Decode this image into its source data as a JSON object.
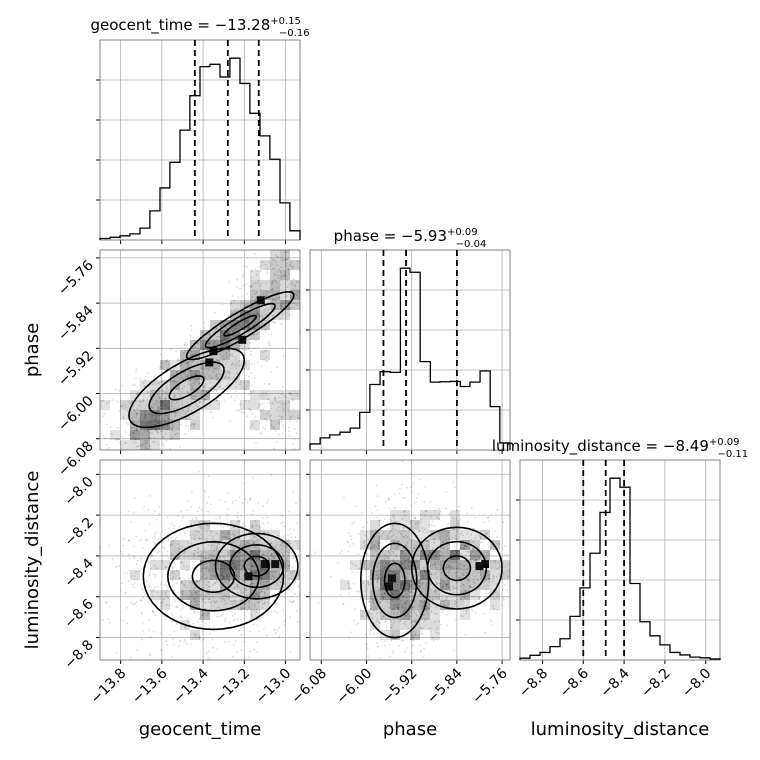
{
  "chart_data": {
    "type": "corner",
    "parameters": [
      "geocent_time",
      "phase",
      "luminosity_distance"
    ],
    "axes": {
      "geocent_time": {
        "label": "geocent_time",
        "range": [
          -13.9,
          -12.93
        ],
        "ticks": [
          -13.8,
          -13.6,
          -13.4,
          -13.2,
          -13.0
        ],
        "tick_labels": [
          "−13.8",
          "−13.6",
          "−13.4",
          "−13.2",
          "−13.0"
        ]
      },
      "phase": {
        "label": "phase",
        "range": [
          -6.1,
          -5.746
        ],
        "ticks": [
          -6.08,
          -6.0,
          -5.92,
          -5.84,
          -5.76
        ],
        "tick_labels": [
          "−6.08",
          "−6.00",
          "−5.92",
          "−5.84",
          "−5.76"
        ]
      },
      "luminosity_distance": {
        "label": "luminosity_distance",
        "range": [
          -8.91,
          -7.93
        ],
        "ticks": [
          -8.8,
          -8.6,
          -8.4,
          -8.2,
          -8.0
        ],
        "tick_labels": [
          "−8.8",
          "−8.6",
          "−8.4",
          "−8.2",
          "−8.0"
        ]
      }
    },
    "titles": [
      {
        "name": "geocent_time",
        "median": "−13.28",
        "plus": "+0.15",
        "minus": "−0.16"
      },
      {
        "name": "phase",
        "median": "−5.93",
        "plus": "+0.09",
        "minus": "−0.04"
      },
      {
        "name": "luminosity_distance",
        "median": "−8.49",
        "plus": "+0.09",
        "minus": "−0.11"
      }
    ],
    "histograms": [
      {
        "parameter": "geocent_time",
        "bins": [
          -13.9,
          -13.852,
          -13.803,
          -13.755,
          -13.706,
          -13.658,
          -13.609,
          -13.561,
          -13.512,
          -13.464,
          -13.415,
          -13.367,
          -13.318,
          -13.27,
          -13.221,
          -13.173,
          -13.124,
          -13.076,
          -13.027,
          -12.979,
          -12.93
        ],
        "counts": [
          0.4,
          0.7,
          1.1,
          1.6,
          3.1,
          7.6,
          13.6,
          20.3,
          28.7,
          37.7,
          45.3,
          45.9,
          42.6,
          47.5,
          40.9,
          33.1,
          27.2,
          21.1,
          9.7,
          2.4
        ],
        "quantiles": [
          -13.44,
          -13.28,
          -13.13
        ]
      },
      {
        "parameter": "phase",
        "bins": [
          -6.1,
          -6.082,
          -6.065,
          -6.047,
          -6.029,
          -6.012,
          -5.994,
          -5.976,
          -5.958,
          -5.94,
          -5.923,
          -5.905,
          -5.887,
          -5.87,
          -5.852,
          -5.834,
          -5.817,
          -5.799,
          -5.781,
          -5.764,
          -5.746
        ],
        "counts": [
          1.8,
          3.6,
          4.5,
          5.3,
          6.5,
          11.2,
          19.5,
          23.3,
          23.1,
          54.1,
          52.9,
          26.3,
          20.2,
          20.3,
          20.4,
          18.9,
          20.2,
          23.5,
          12.9,
          2.1
        ],
        "quantiles": [
          -5.97,
          -5.93,
          -5.84
        ]
      },
      {
        "parameter": "luminosity_distance",
        "bins": [
          -8.91,
          -8.861,
          -8.812,
          -8.763,
          -8.714,
          -8.665,
          -8.616,
          -8.567,
          -8.518,
          -8.469,
          -8.42,
          -8.371,
          -8.322,
          -8.273,
          -8.224,
          -8.175,
          -8.126,
          -8.077,
          -8.028,
          -7.979,
          -7.93
        ],
        "counts": [
          0.5,
          1.3,
          2.1,
          3.7,
          5.9,
          12.1,
          20.0,
          29.6,
          40.9,
          50.4,
          47.9,
          21.2,
          10.6,
          6.7,
          4.2,
          2.1,
          1.4,
          0.8,
          0.6,
          0.3
        ],
        "quantiles": [
          -8.6,
          -8.49,
          -8.4
        ]
      }
    ],
    "joint": [
      {
        "x": "geocent_time",
        "y": "phase",
        "blobs": [
          {
            "x": -13.48,
            "y": -5.99,
            "sx": 0.14,
            "sy": 0.035,
            "rho": 0.7,
            "weight": 3
          },
          {
            "x": -13.22,
            "y": -5.88,
            "sx": 0.13,
            "sy": 0.03,
            "rho": 0.9,
            "weight": 2.5
          },
          {
            "x": -13.05,
            "y": -5.79,
            "sx": 0.09,
            "sy": 0.025,
            "rho": 0.6,
            "weight": 1
          },
          {
            "x": -13.65,
            "y": -6.06,
            "sx": 0.06,
            "sy": 0.018,
            "rho": 0.3,
            "weight": 1
          },
          {
            "x": -13.05,
            "y": -6.03,
            "sx": 0.07,
            "sy": 0.02,
            "rho": -0.3,
            "weight": 0.8
          }
        ],
        "dense_cells": [
          [
            -13.37,
            -5.945
          ],
          [
            -13.35,
            -5.925
          ],
          [
            -13.21,
            -5.905
          ],
          [
            -13.12,
            -5.835
          ]
        ]
      },
      {
        "x": "geocent_time",
        "y": "luminosity_distance",
        "blobs": [
          {
            "x": -13.35,
            "y": -8.5,
            "sx": 0.17,
            "sy": 0.13,
            "rho": 0,
            "weight": 3
          },
          {
            "x": -13.14,
            "y": -8.45,
            "sx": 0.1,
            "sy": 0.08,
            "rho": 0,
            "weight": 1.5
          }
        ],
        "dense_cells": [
          [
            -13.18,
            -8.5
          ],
          [
            -13.1,
            -8.44
          ],
          [
            -13.05,
            -8.44
          ]
        ]
      },
      {
        "x": "phase",
        "y": "luminosity_distance",
        "blobs": [
          {
            "x": -5.95,
            "y": -8.52,
            "sx": 0.03,
            "sy": 0.14,
            "rho": 0,
            "weight": 2.5
          },
          {
            "x": -5.84,
            "y": -8.46,
            "sx": 0.04,
            "sy": 0.1,
            "rho": 0,
            "weight": 2
          }
        ],
        "dense_cells": [
          [
            -5.96,
            -8.55
          ],
          [
            -5.955,
            -8.51
          ],
          [
            -5.8,
            -8.45
          ],
          [
            -5.79,
            -8.44
          ]
        ]
      }
    ]
  }
}
